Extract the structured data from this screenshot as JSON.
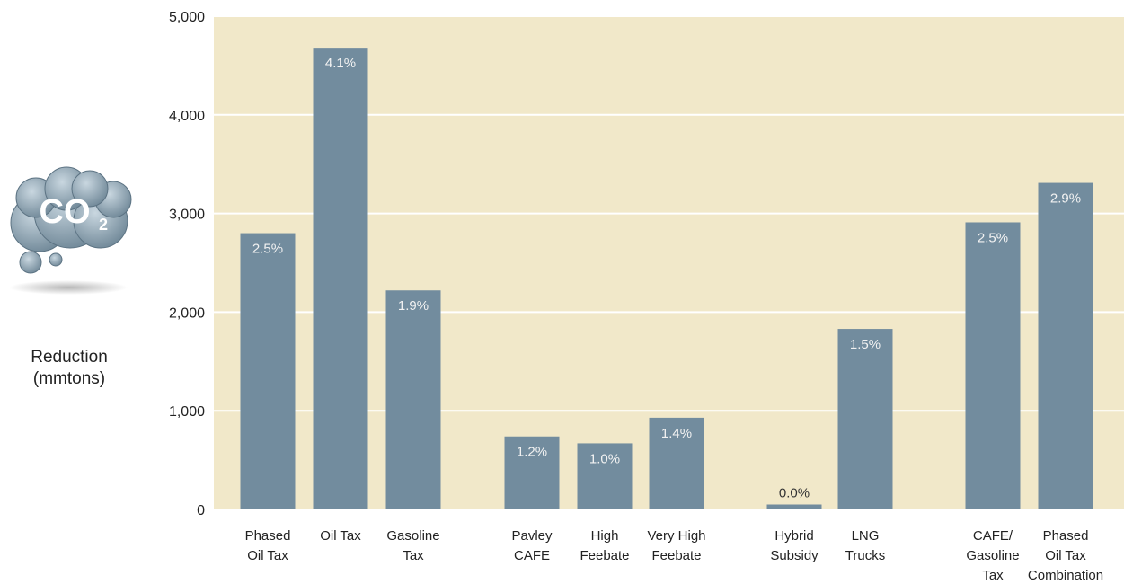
{
  "chart_data": {
    "type": "bar",
    "title": "",
    "ylabel": "Reduction (mmtons)",
    "ylabel_lines": [
      "Reduction",
      "(mmtons)"
    ],
    "ylim": [
      0,
      5000
    ],
    "yticks": [
      0,
      1000,
      2000,
      3000,
      4000,
      5000
    ],
    "ytick_labels": [
      "0",
      "1,000",
      "2,000",
      "3,000",
      "4,000",
      "5,000"
    ],
    "grid": true,
    "icon": "co2-cloud-icon",
    "icon_text": "CO",
    "icon_subscript": "2",
    "colors": {
      "plot_bg": "#f1e8c9",
      "bar": "#728c9e",
      "grid": "#ffffff",
      "bar_label": "#f2f2f2",
      "bar_label_dark": "#333333"
    },
    "groups": [
      {
        "bars": [
          {
            "label_lines": [
              "Phased",
              "Oil Tax"
            ],
            "value": 2800,
            "pct": "2.5%"
          },
          {
            "label_lines": [
              "Oil Tax"
            ],
            "value": 4680,
            "pct": "4.1%"
          },
          {
            "label_lines": [
              "Gasoline",
              "Tax"
            ],
            "value": 2220,
            "pct": "1.9%"
          }
        ]
      },
      {
        "bars": [
          {
            "label_lines": [
              "Pavley",
              "CAFE"
            ],
            "value": 740,
            "pct": "1.2%"
          },
          {
            "label_lines": [
              "High",
              "Feebate"
            ],
            "value": 670,
            "pct": "1.0%"
          },
          {
            "label_lines": [
              "Very High",
              "Feebate"
            ],
            "value": 930,
            "pct": "1.4%"
          }
        ]
      },
      {
        "bars": [
          {
            "label_lines": [
              "Hybrid",
              "Subsidy"
            ],
            "value": 50,
            "pct": "0.0%"
          },
          {
            "label_lines": [
              "LNG",
              "Trucks"
            ],
            "value": 1830,
            "pct": "1.5%"
          }
        ]
      },
      {
        "bars": [
          {
            "label_lines": [
              "CAFE/",
              "Gasoline",
              "Tax"
            ],
            "value": 2910,
            "pct": "2.5%"
          },
          {
            "label_lines": [
              "Phased",
              "Oil Tax",
              "Combination"
            ],
            "value": 3310,
            "pct": "2.9%"
          }
        ]
      }
    ]
  }
}
